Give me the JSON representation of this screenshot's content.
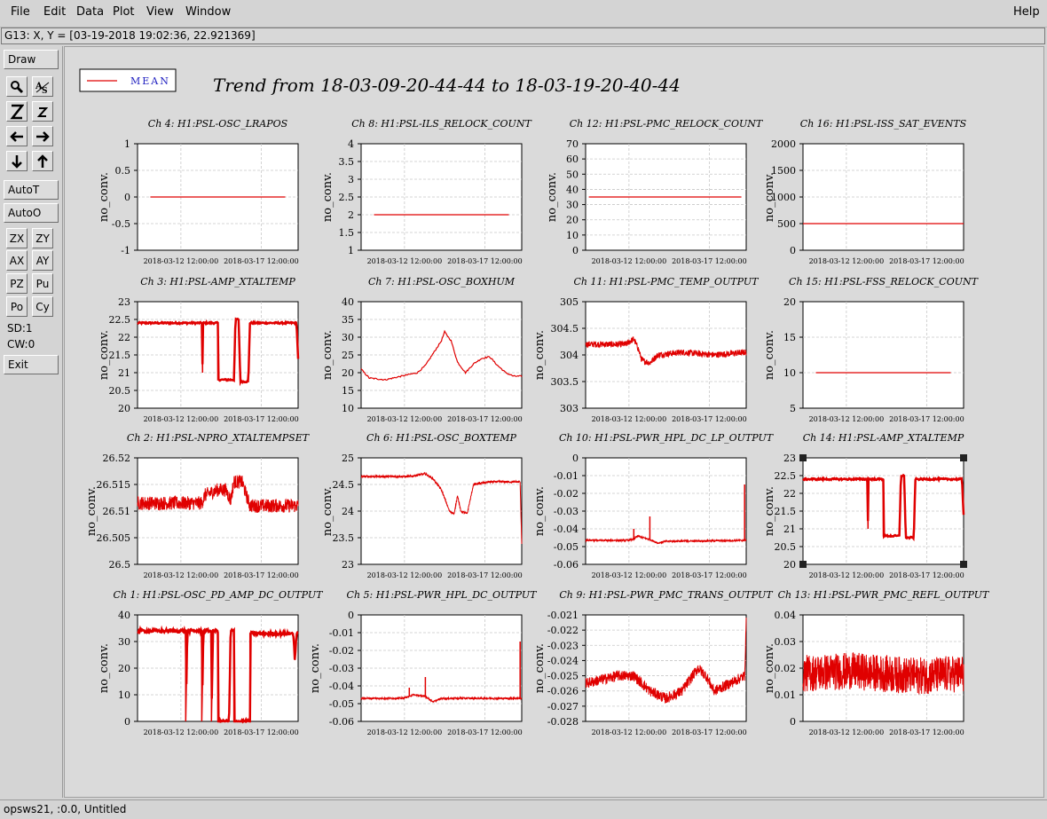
{
  "menu": {
    "file": "File",
    "edit": "Edit",
    "data": "Data",
    "plot": "Plot",
    "view": "View",
    "window": "Window",
    "help": "Help"
  },
  "coord_readout": "G13: X, Y = [03-19-2018 19:02:36, 22.921369]",
  "toolbar": {
    "draw": "Draw",
    "autot": "AutoT",
    "autoo": "AutoO",
    "zx": "ZX",
    "zy": "ZY",
    "ax": "AX",
    "ay": "AY",
    "pz": "PZ",
    "pu": "Pu",
    "po": "Po",
    "cy": "Cy",
    "sd": "SD:1",
    "cw": "CW:0",
    "exit": "Exit"
  },
  "legend": {
    "label": "MEAN",
    "line_color": "#e00000",
    "text_color": "#2020c0"
  },
  "plot_title": "Trend from 18-03-09-20-44-44 to 18-03-19-20-40-44",
  "status": "opsws21, :0.0, Untitled",
  "chart_data": [
    {
      "type": "line",
      "title": "Ch 4: H1:PSL-OSC_LRAPOS",
      "ylabel": "no_conv.",
      "ylim": [
        -1,
        1
      ],
      "yticks": [
        "1",
        "0.5",
        "0",
        "-0.5",
        "-1"
      ],
      "xticks": [
        "2018-03-12 12:00:00",
        "2018-03-17 12:00:00"
      ],
      "style": "flat",
      "level": 0,
      "start": 0.08,
      "end": 0.92
    },
    {
      "type": "line",
      "title": "Ch 8: H1:PSL-ILS_RELOCK_COUNT",
      "ylabel": "no_conv.",
      "ylim": [
        1,
        4
      ],
      "yticks": [
        "4",
        "3.5",
        "3",
        "2.5",
        "2",
        "1.5",
        "1"
      ],
      "xticks": [
        "2018-03-12 12:00:00",
        "2018-03-17 12:00:00"
      ],
      "style": "flat",
      "level": 2,
      "start": 0.08,
      "end": 0.92
    },
    {
      "type": "line",
      "title": "Ch 12: H1:PSL-PMC_RELOCK_COUNT",
      "ylabel": "no_conv.",
      "ylim": [
        0,
        70
      ],
      "yticks": [
        "70",
        "60",
        "50",
        "40",
        "30",
        "20",
        "10",
        "0"
      ],
      "xticks": [
        "2018-03-12 12:00:00",
        "2018-03-17 12:00:00"
      ],
      "style": "flat",
      "level": 35,
      "start": 0.02,
      "end": 0.97
    },
    {
      "type": "line",
      "title": "Ch 16: H1:PSL-ISS_SAT_EVENTS",
      "ylabel": "no_conv.",
      "ylim": [
        0,
        2000
      ],
      "yticks": [
        "2000",
        "1500",
        "1000",
        "500",
        "0"
      ],
      "xticks": [
        "2018-03-12 12:00:00",
        "2018-03-17 12:00:00"
      ],
      "style": "flat",
      "level": 500,
      "start": 0.0,
      "end": 1.0
    },
    {
      "type": "line",
      "title": "Ch 3: H1:PSL-AMP_XTALTEMP",
      "ylabel": "no_conv.",
      "ylim": [
        20,
        23
      ],
      "yticks": [
        "23",
        "22.5",
        "22",
        "21.5",
        "21",
        "20.5",
        "20"
      ],
      "xticks": [
        "2018-03-12 12:00:00",
        "2018-03-17 12:00:00"
      ],
      "style": "steps",
      "noise": 0.025,
      "points": [
        [
          0,
          22.4
        ],
        [
          0.4,
          22.4
        ],
        [
          0.405,
          21.0
        ],
        [
          0.405,
          22.4
        ],
        [
          0.5,
          22.4
        ],
        [
          0.5,
          20.8
        ],
        [
          0.6,
          20.8
        ],
        [
          0.61,
          22.5
        ],
        [
          0.63,
          22.5
        ],
        [
          0.64,
          20.75
        ],
        [
          0.69,
          20.75
        ],
        [
          0.7,
          22.4
        ],
        [
          0.99,
          22.4
        ],
        [
          1,
          21.4
        ]
      ]
    },
    {
      "type": "line",
      "title": "Ch 7: H1:PSL-OSC_BOXHUM",
      "ylabel": "no_conv.",
      "ylim": [
        10,
        40
      ],
      "yticks": [
        "40",
        "35",
        "30",
        "25",
        "20",
        "15",
        "10"
      ],
      "xticks": [
        "2018-03-12 12:00:00",
        "2018-03-17 12:00:00"
      ],
      "style": "smooth",
      "noise": 0.2,
      "points": [
        [
          0,
          21
        ],
        [
          0.05,
          18.5
        ],
        [
          0.15,
          18
        ],
        [
          0.3,
          19.5
        ],
        [
          0.35,
          20
        ],
        [
          0.4,
          22
        ],
        [
          0.5,
          29
        ],
        [
          0.52,
          31.5
        ],
        [
          0.56,
          29
        ],
        [
          0.6,
          23
        ],
        [
          0.65,
          20
        ],
        [
          0.7,
          22.5
        ],
        [
          0.75,
          24
        ],
        [
          0.8,
          24.5
        ],
        [
          0.85,
          22
        ],
        [
          0.9,
          20
        ],
        [
          0.95,
          19
        ],
        [
          1,
          19
        ]
      ]
    },
    {
      "type": "line",
      "title": "Ch 11: H1:PSL-PMC_TEMP_OUTPUT",
      "ylabel": "no_conv.",
      "ylim": [
        303,
        305
      ],
      "yticks": [
        "305",
        "304.5",
        "304",
        "303.5",
        "303"
      ],
      "xticks": [
        "2018-03-12 12:00:00",
        "2018-03-17 12:00:00"
      ],
      "style": "noisy",
      "noise": 0.06,
      "points": [
        [
          0,
          304.2
        ],
        [
          0.25,
          304.2
        ],
        [
          0.3,
          304.3
        ],
        [
          0.33,
          304.1
        ],
        [
          0.35,
          303.9
        ],
        [
          0.4,
          303.85
        ],
        [
          0.45,
          304.0
        ],
        [
          0.6,
          304.05
        ],
        [
          0.8,
          304.0
        ],
        [
          1,
          304.05
        ]
      ]
    },
    {
      "type": "line",
      "title": "Ch 15: H1:PSL-FSS_RELOCK_COUNT",
      "ylabel": "no_conv.",
      "ylim": [
        5,
        20
      ],
      "yticks": [
        "20",
        "15",
        "10",
        "5"
      ],
      "xticks": [
        "2018-03-12 12:00:00",
        "2018-03-17 12:00:00"
      ],
      "style": "flat",
      "level": 10,
      "start": 0.08,
      "end": 0.92
    },
    {
      "type": "line",
      "title": "Ch 2: H1:PSL-NPRO_XTALTEMPSET",
      "ylabel": "no_conv.",
      "ylim": [
        26.5,
        26.52
      ],
      "yticks": [
        "26.52",
        "26.515",
        "26.51",
        "26.505",
        "26.5"
      ],
      "xticks": [
        "2018-03-12 12:00:00",
        "2018-03-17 12:00:00"
      ],
      "style": "noisy",
      "noise": 0.0013,
      "points": [
        [
          0,
          26.5115
        ],
        [
          0.4,
          26.5115
        ],
        [
          0.42,
          26.513
        ],
        [
          0.5,
          26.514
        ],
        [
          0.55,
          26.514
        ],
        [
          0.58,
          26.512
        ],
        [
          0.6,
          26.5155
        ],
        [
          0.65,
          26.5155
        ],
        [
          0.7,
          26.511
        ],
        [
          1,
          26.511
        ]
      ]
    },
    {
      "type": "line",
      "title": "Ch 6: H1:PSL-OSC_BOXTEMP",
      "ylabel": "no_conv.",
      "ylim": [
        23,
        25
      ],
      "yticks": [
        "25",
        "24.5",
        "24",
        "23.5",
        "23"
      ],
      "xticks": [
        "2018-03-12 12:00:00",
        "2018-03-17 12:00:00"
      ],
      "style": "noisy",
      "noise": 0.02,
      "points": [
        [
          0,
          24.65
        ],
        [
          0.3,
          24.65
        ],
        [
          0.4,
          24.7
        ],
        [
          0.45,
          24.6
        ],
        [
          0.5,
          24.4
        ],
        [
          0.55,
          24.0
        ],
        [
          0.58,
          23.95
        ],
        [
          0.6,
          24.3
        ],
        [
          0.62,
          24.0
        ],
        [
          0.66,
          23.95
        ],
        [
          0.7,
          24.5
        ],
        [
          0.8,
          24.55
        ],
        [
          0.99,
          24.55
        ],
        [
          1,
          23.4
        ]
      ]
    },
    {
      "type": "line",
      "title": "Ch 10: H1:PSL-PWR_HPL_DC_LP_OUTPUT",
      "ylabel": "no_conv.",
      "ylim": [
        -0.06,
        0
      ],
      "yticks": [
        "0",
        "-0.01",
        "-0.02",
        "-0.03",
        "-0.04",
        "-0.05",
        "-0.06"
      ],
      "xticks": [
        "2018-03-12 12:00:00",
        "2018-03-17 12:00:00"
      ],
      "style": "noisy",
      "noise": 0.0005,
      "points": [
        [
          0,
          -0.0465
        ],
        [
          0.25,
          -0.0465
        ],
        [
          0.3,
          -0.046
        ],
        [
          0.32,
          -0.044
        ],
        [
          0.4,
          -0.046
        ],
        [
          0.45,
          -0.048
        ],
        [
          0.5,
          -0.047
        ],
        [
          1,
          -0.0465
        ]
      ],
      "spikes": [
        [
          0.3,
          -0.04
        ],
        [
          0.4,
          -0.033
        ],
        [
          0.99,
          -0.015
        ]
      ]
    },
    {
      "type": "line",
      "title": "Ch 14: H1:PSL-AMP_XTALTEMP",
      "ylabel": "no_conv.",
      "ylim": [
        20,
        23
      ],
      "yticks": [
        "23",
        "22.5",
        "22",
        "21.5",
        "21",
        "20.5",
        "20"
      ],
      "xticks": [
        "2018-03-12 12:00:00",
        "2018-03-17 12:00:00"
      ],
      "style": "steps",
      "noise": 0.025,
      "selected": true,
      "points": [
        [
          0,
          22.4
        ],
        [
          0.4,
          22.4
        ],
        [
          0.405,
          21.0
        ],
        [
          0.405,
          22.4
        ],
        [
          0.5,
          22.4
        ],
        [
          0.5,
          20.8
        ],
        [
          0.6,
          20.8
        ],
        [
          0.61,
          22.5
        ],
        [
          0.63,
          22.5
        ],
        [
          0.64,
          20.75
        ],
        [
          0.69,
          20.75
        ],
        [
          0.7,
          22.4
        ],
        [
          0.99,
          22.4
        ],
        [
          1,
          21.4
        ]
      ]
    },
    {
      "type": "line",
      "title": "Ch 1: H1:PSL-OSC_PD_AMP_DC_OUTPUT",
      "ylabel": "no_conv.",
      "ylim": [
        0,
        40
      ],
      "yticks": [
        "40",
        "30",
        "20",
        "10",
        "0"
      ],
      "xticks": [
        "2018-03-12 12:00:00",
        "2018-03-17 12:00:00"
      ],
      "style": "steps",
      "noise": 0.05,
      "points": [
        [
          0,
          34
        ],
        [
          0.3,
          34
        ],
        [
          0.3,
          0
        ],
        [
          0.31,
          34
        ],
        [
          0.4,
          34
        ],
        [
          0.4,
          0
        ],
        [
          0.41,
          34
        ],
        [
          0.46,
          34
        ],
        [
          0.46,
          0
        ],
        [
          0.47,
          34
        ],
        [
          0.5,
          34
        ],
        [
          0.5,
          0
        ],
        [
          0.52,
          0
        ],
        [
          0.57,
          0
        ],
        [
          0.58,
          34
        ],
        [
          0.6,
          34
        ],
        [
          0.6,
          0
        ],
        [
          0.61,
          0
        ],
        [
          0.7,
          0
        ],
        [
          0.7,
          33
        ],
        [
          0.97,
          33
        ],
        [
          0.98,
          23
        ],
        [
          0.99,
          33
        ],
        [
          1,
          33
        ]
      ]
    },
    {
      "type": "line",
      "title": "Ch 5: H1:PSL-PWR_HPL_DC_OUTPUT",
      "ylabel": "no_conv.",
      "ylim": [
        -0.06,
        0
      ],
      "yticks": [
        "0",
        "-0.01",
        "-0.02",
        "-0.03",
        "-0.04",
        "-0.05",
        "-0.06"
      ],
      "xticks": [
        "2018-03-12 12:00:00",
        "2018-03-17 12:00:00"
      ],
      "style": "noisy",
      "noise": 0.0005,
      "points": [
        [
          0,
          -0.047
        ],
        [
          0.25,
          -0.047
        ],
        [
          0.3,
          -0.046
        ],
        [
          0.32,
          -0.045
        ],
        [
          0.4,
          -0.046
        ],
        [
          0.45,
          -0.049
        ],
        [
          0.5,
          -0.047
        ],
        [
          1,
          -0.047
        ]
      ],
      "spikes": [
        [
          0.3,
          -0.041
        ],
        [
          0.4,
          -0.035
        ],
        [
          0.99,
          -0.015
        ]
      ]
    },
    {
      "type": "line",
      "title": "Ch 9: H1:PSL-PWR_PMC_TRANS_OUTPUT",
      "ylabel": "no_conv.",
      "ylim": [
        -0.028,
        -0.021
      ],
      "yticks": [
        "-0.021",
        "-0.022",
        "-0.023",
        "-0.024",
        "-0.025",
        "-0.026",
        "-0.027",
        "-0.028"
      ],
      "xticks": [
        "2018-03-12 12:00:00",
        "2018-03-17 12:00:00"
      ],
      "style": "noisy",
      "noise": 0.00035,
      "points": [
        [
          0,
          -0.0255
        ],
        [
          0.2,
          -0.025
        ],
        [
          0.3,
          -0.025
        ],
        [
          0.4,
          -0.026
        ],
        [
          0.5,
          -0.0265
        ],
        [
          0.6,
          -0.026
        ],
        [
          0.7,
          -0.0245
        ],
        [
          0.75,
          -0.025
        ],
        [
          0.8,
          -0.026
        ],
        [
          0.9,
          -0.0255
        ],
        [
          0.99,
          -0.025
        ],
        [
          1,
          -0.0215
        ]
      ]
    },
    {
      "type": "line",
      "title": "Ch 13: H1:PSL-PWR_PMC_REFL_OUTPUT",
      "ylabel": "no_conv.",
      "ylim": [
        0,
        0.04
      ],
      "yticks": [
        "0.04",
        "0.03",
        "0.02",
        "0.01",
        "0"
      ],
      "xticks": [
        "2018-03-12 12:00:00",
        "2018-03-17 12:00:00"
      ],
      "style": "noisy",
      "noise": 0.007,
      "points": [
        [
          0,
          0.018
        ],
        [
          0.3,
          0.019
        ],
        [
          0.5,
          0.018
        ],
        [
          0.7,
          0.017
        ],
        [
          1,
          0.018
        ]
      ]
    }
  ]
}
